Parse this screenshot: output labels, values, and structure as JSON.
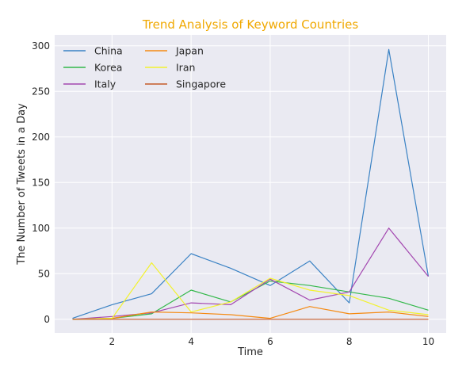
{
  "chart_data": {
    "type": "line",
    "title": "Trend Analysis of Keyword Countries",
    "title_color": "#f0a800",
    "xlabel": "Time",
    "ylabel": "The Number of Tweets in a Day",
    "xlim": [
      0.55,
      10.45
    ],
    "ylim": [
      -15,
      312
    ],
    "xticks": [
      2,
      4,
      6,
      8,
      10
    ],
    "yticks": [
      0,
      50,
      100,
      150,
      200,
      250,
      300
    ],
    "grid": true,
    "legend_position": "top-left",
    "x": [
      1,
      2,
      3,
      4,
      5,
      6,
      7,
      8,
      9,
      10
    ],
    "series": [
      {
        "name": "China",
        "color": "#3a82c4",
        "values": [
          1,
          16,
          28,
          72,
          56,
          37,
          64,
          18,
          296,
          47
        ]
      },
      {
        "name": "Korea",
        "color": "#33b84a",
        "values": [
          0,
          1,
          6,
          32,
          19,
          42,
          37,
          30,
          23,
          10
        ]
      },
      {
        "name": "Italy",
        "color": "#a347b0",
        "values": [
          0,
          3,
          7,
          18,
          16,
          44,
          21,
          30,
          100,
          47
        ]
      },
      {
        "name": "Japan",
        "color": "#f58a12",
        "values": [
          0,
          1,
          8,
          7,
          5,
          1,
          14,
          6,
          8,
          3
        ]
      },
      {
        "name": "Iran",
        "color": "#f2f22e",
        "values": [
          0,
          1,
          62,
          8,
          19,
          45,
          32,
          26,
          10,
          5
        ]
      },
      {
        "name": "Singapore",
        "color": "#c45a28",
        "values": [
          0,
          0,
          0,
          0,
          0,
          0,
          0,
          0,
          0,
          0
        ]
      }
    ]
  }
}
